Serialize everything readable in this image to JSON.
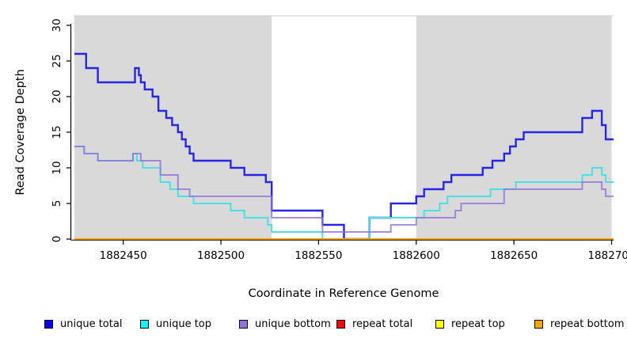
{
  "chart_data": {
    "type": "line",
    "subtype": "step-coverage-plot",
    "title": "",
    "xlabel": "Coordinate in Reference Genome",
    "ylabel": "Read Coverage Depth",
    "xlim": [
      1882425,
      1882700
    ],
    "ylim": [
      0,
      30
    ],
    "x_ticks": [
      1882450,
      1882500,
      1882550,
      1882600,
      1882650,
      1882700
    ],
    "y_ticks": [
      0,
      5,
      10,
      15,
      20,
      25,
      30
    ],
    "grid": false,
    "background_color": "#ffffff",
    "shaded_regions": [
      {
        "x1": 1882425,
        "x2": 1882526,
        "color": "#d9d9d9"
      },
      {
        "x1": 1882600,
        "x2": 1882700,
        "color": "#d9d9d9"
      }
    ],
    "series": [
      {
        "name": "unique total",
        "color": "#2626e8",
        "stroke_width": 2.4,
        "points": [
          [
            1882425,
            26
          ],
          [
            1882431,
            24
          ],
          [
            1882437,
            22
          ],
          [
            1882456,
            24
          ],
          [
            1882458,
            23
          ],
          [
            1882459,
            22
          ],
          [
            1882461,
            21
          ],
          [
            1882465,
            20
          ],
          [
            1882468,
            18
          ],
          [
            1882472,
            17
          ],
          [
            1882475,
            16
          ],
          [
            1882478,
            15
          ],
          [
            1882480,
            14
          ],
          [
            1882482,
            13
          ],
          [
            1882484,
            12
          ],
          [
            1882486,
            11
          ],
          [
            1882505,
            10
          ],
          [
            1882512,
            9
          ],
          [
            1882523,
            8
          ],
          [
            1882526,
            4
          ],
          [
            1882552,
            2
          ],
          [
            1882563,
            0
          ],
          [
            1882576,
            3
          ],
          [
            1882587,
            5
          ],
          [
            1882600,
            6
          ],
          [
            1882604,
            7
          ],
          [
            1882614,
            8
          ],
          [
            1882618,
            9
          ],
          [
            1882634,
            10
          ],
          [
            1882639,
            11
          ],
          [
            1882645,
            12
          ],
          [
            1882648,
            13
          ],
          [
            1882651,
            14
          ],
          [
            1882655,
            15
          ],
          [
            1882685,
            17
          ],
          [
            1882690,
            18
          ],
          [
            1882695,
            16
          ],
          [
            1882697,
            14
          ]
        ]
      },
      {
        "name": "unique top",
        "color": "#4ddfe6",
        "stroke_width": 2,
        "points": [
          [
            1882425,
            13
          ],
          [
            1882430,
            12
          ],
          [
            1882437,
            11
          ],
          [
            1882455,
            12
          ],
          [
            1882457,
            11
          ],
          [
            1882460,
            10
          ],
          [
            1882469,
            8
          ],
          [
            1882474,
            7
          ],
          [
            1882478,
            6
          ],
          [
            1882486,
            5
          ],
          [
            1882505,
            4
          ],
          [
            1882512,
            3
          ],
          [
            1882524,
            2
          ],
          [
            1882526,
            1
          ],
          [
            1882552,
            0
          ],
          [
            1882576,
            3
          ],
          [
            1882604,
            4
          ],
          [
            1882612,
            5
          ],
          [
            1882616,
            6
          ],
          [
            1882638,
            7
          ],
          [
            1882651,
            8
          ],
          [
            1882685,
            9
          ],
          [
            1882690,
            10
          ],
          [
            1882695,
            9
          ],
          [
            1882697,
            8
          ]
        ]
      },
      {
        "name": "unique bottom",
        "color": "rgba(147,112,219,0.8)",
        "stroke_width": 2,
        "points": [
          [
            1882425,
            13
          ],
          [
            1882430,
            12
          ],
          [
            1882437,
            11
          ],
          [
            1882455,
            12
          ],
          [
            1882459,
            11
          ],
          [
            1882469,
            9
          ],
          [
            1882478,
            7
          ],
          [
            1882484,
            6
          ],
          [
            1882526,
            3
          ],
          [
            1882552,
            1
          ],
          [
            1882587,
            2
          ],
          [
            1882600,
            3
          ],
          [
            1882620,
            4
          ],
          [
            1882623,
            5
          ],
          [
            1882645,
            7
          ],
          [
            1882685,
            8
          ],
          [
            1882695,
            7
          ],
          [
            1882697,
            6
          ]
        ]
      },
      {
        "name": "repeat total",
        "color": "#ff0000",
        "stroke_width": 2,
        "points": [
          [
            1882425,
            0
          ]
        ]
      },
      {
        "name": "repeat top",
        "color": "#ffff00",
        "stroke_width": 2,
        "points": [
          [
            1882425,
            0
          ]
        ]
      },
      {
        "name": "repeat bottom",
        "color": "#ffa500",
        "stroke_width": 2.2,
        "points": [
          [
            1882425,
            0
          ]
        ]
      }
    ],
    "legend_position": "bottom"
  },
  "legend": {
    "items": [
      {
        "label": "unique total",
        "color": "#0000ff"
      },
      {
        "label": "unique top",
        "color": "#00ffff"
      },
      {
        "label": "unique bottom",
        "color": "#9370db"
      },
      {
        "label": "repeat total",
        "color": "#ff0000"
      },
      {
        "label": "repeat top",
        "color": "#ffff00"
      },
      {
        "label": "repeat bottom",
        "color": "#ffa500"
      }
    ]
  },
  "axis": {
    "tick_color": "#000000",
    "axis_color": "#000000",
    "plot_top_border_color": "#cccccc"
  }
}
